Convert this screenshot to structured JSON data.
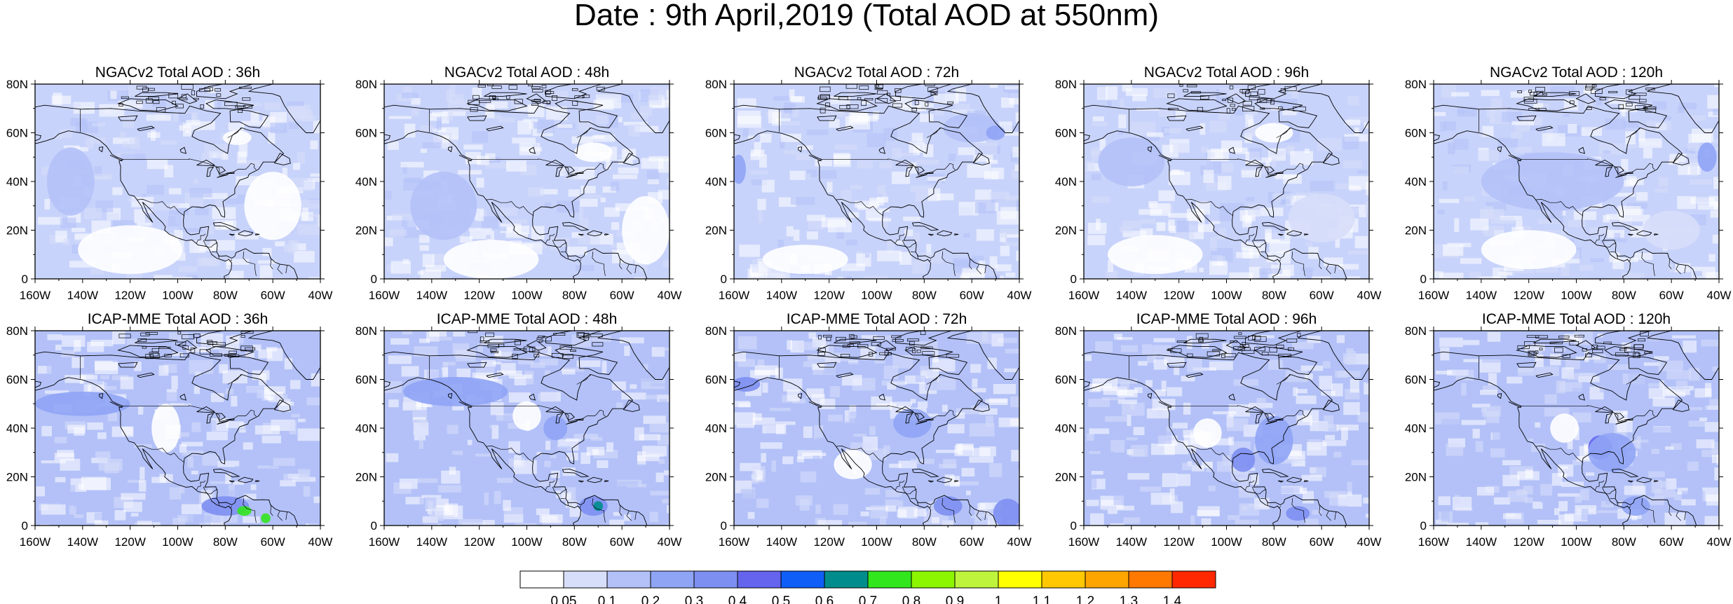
{
  "title": "Date : 9th April,2019 (Total AOD at 550nm)",
  "panels": [
    {
      "title": "NGACv2 Total AOD : 36h",
      "model": "NGACv2",
      "lead": "36h",
      "bg": "#c8d3fb",
      "blobs": [
        {
          "cx": -120,
          "cy": 12,
          "rx": 22,
          "ry": 10,
          "level": 0
        },
        {
          "cx": -60,
          "cy": 30,
          "rx": 12,
          "ry": 14,
          "level": 0
        },
        {
          "cx": -145,
          "cy": 40,
          "rx": 10,
          "ry": 14,
          "level": 2
        },
        {
          "cx": -75,
          "cy": 58,
          "rx": 6,
          "ry": 3,
          "level": 0
        }
      ]
    },
    {
      "title": "NGACv2 Total AOD : 48h",
      "model": "NGACv2",
      "lead": "48h",
      "bg": "#c8d3fb",
      "blobs": [
        {
          "cx": -115,
          "cy": 8,
          "rx": 20,
          "ry": 8,
          "level": 0
        },
        {
          "cx": -50,
          "cy": 20,
          "rx": 10,
          "ry": 14,
          "level": 0
        },
        {
          "cx": -135,
          "cy": 30,
          "rx": 14,
          "ry": 14,
          "level": 2
        },
        {
          "cx": -72,
          "cy": 52,
          "rx": 8,
          "ry": 4,
          "level": 0
        }
      ]
    },
    {
      "title": "NGACv2 Total AOD : 72h",
      "model": "NGACv2",
      "lead": "72h",
      "bg": "#c8d3fb",
      "blobs": [
        {
          "cx": -130,
          "cy": 8,
          "rx": 18,
          "ry": 6,
          "level": 0
        },
        {
          "cx": -60,
          "cy": 62,
          "rx": 12,
          "ry": 6,
          "level": 2
        },
        {
          "cx": -50,
          "cy": 60,
          "rx": 4,
          "ry": 3,
          "level": 3
        },
        {
          "cx": -158,
          "cy": 45,
          "rx": 3,
          "ry": 6,
          "level": 3
        }
      ]
    },
    {
      "title": "NGACv2 Total AOD : 96h",
      "model": "NGACv2",
      "lead": "96h",
      "bg": "#c8d3fb",
      "blobs": [
        {
          "cx": -130,
          "cy": 10,
          "rx": 20,
          "ry": 8,
          "level": 0
        },
        {
          "cx": -140,
          "cy": 48,
          "rx": 14,
          "ry": 10,
          "level": 2
        },
        {
          "cx": -60,
          "cy": 25,
          "rx": 14,
          "ry": 10,
          "level": 1
        },
        {
          "cx": -80,
          "cy": 60,
          "rx": 8,
          "ry": 4,
          "level": 0
        }
      ]
    },
    {
      "title": "NGACv2 Total AOD : 120h",
      "model": "NGACv2",
      "lead": "120h",
      "bg": "#c8d3fb",
      "blobs": [
        {
          "cx": -120,
          "cy": 12,
          "rx": 20,
          "ry": 8,
          "level": 0
        },
        {
          "cx": -110,
          "cy": 40,
          "rx": 30,
          "ry": 12,
          "level": 2
        },
        {
          "cx": -45,
          "cy": 50,
          "rx": 4,
          "ry": 6,
          "level": 3
        },
        {
          "cx": -60,
          "cy": 20,
          "rx": 12,
          "ry": 8,
          "level": 1
        }
      ]
    },
    {
      "title": "ICAP-MME Total AOD : 36h",
      "model": "ICAP-MME",
      "lead": "36h",
      "bg": "#b3c1f8",
      "blobs": [
        {
          "cx": -105,
          "cy": 40,
          "rx": 6,
          "ry": 10,
          "level": 0
        },
        {
          "cx": -140,
          "cy": 50,
          "rx": 20,
          "ry": 5,
          "level": 3
        },
        {
          "cx": -80,
          "cy": 8,
          "rx": 10,
          "ry": 4,
          "level": 4
        },
        {
          "cx": -72,
          "cy": 6,
          "rx": 3,
          "ry": 2,
          "level": 8
        },
        {
          "cx": -63,
          "cy": 3,
          "rx": 2,
          "ry": 2,
          "level": 8
        }
      ]
    },
    {
      "title": "ICAP-MME Total AOD : 48h",
      "model": "ICAP-MME",
      "lead": "48h",
      "bg": "#b3c1f8",
      "blobs": [
        {
          "cx": -100,
          "cy": 45,
          "rx": 6,
          "ry": 6,
          "level": 0
        },
        {
          "cx": -88,
          "cy": 40,
          "rx": 5,
          "ry": 5,
          "level": 3
        },
        {
          "cx": -130,
          "cy": 55,
          "rx": 22,
          "ry": 6,
          "level": 3
        },
        {
          "cx": -72,
          "cy": 8,
          "rx": 6,
          "ry": 4,
          "level": 4
        },
        {
          "cx": -70,
          "cy": 8,
          "rx": 2,
          "ry": 2,
          "level": 7
        }
      ]
    },
    {
      "title": "ICAP-MME Total AOD : 72h",
      "model": "ICAP-MME",
      "lead": "72h",
      "bg": "#b3c1f8",
      "blobs": [
        {
          "cx": -155,
          "cy": 58,
          "rx": 6,
          "ry": 3,
          "level": 4
        },
        {
          "cx": -85,
          "cy": 42,
          "rx": 8,
          "ry": 6,
          "level": 3
        },
        {
          "cx": -70,
          "cy": 8,
          "rx": 6,
          "ry": 4,
          "level": 4
        },
        {
          "cx": -45,
          "cy": 5,
          "rx": 6,
          "ry": 6,
          "level": 4
        },
        {
          "cx": -110,
          "cy": 25,
          "rx": 8,
          "ry": 6,
          "level": 0
        }
      ]
    },
    {
      "title": "ICAP-MME Total AOD : 96h",
      "model": "ICAP-MME",
      "lead": "96h",
      "bg": "#b3c1f8",
      "blobs": [
        {
          "cx": -93,
          "cy": 27,
          "rx": 5,
          "ry": 5,
          "level": 4
        },
        {
          "cx": -80,
          "cy": 35,
          "rx": 8,
          "ry": 10,
          "level": 3
        },
        {
          "cx": -108,
          "cy": 38,
          "rx": 6,
          "ry": 6,
          "level": 0
        },
        {
          "cx": -70,
          "cy": 5,
          "rx": 5,
          "ry": 3,
          "level": 4
        }
      ]
    },
    {
      "title": "ICAP-MME Total AOD : 120h",
      "model": "ICAP-MME",
      "lead": "120h",
      "bg": "#b3c1f8",
      "blobs": [
        {
          "cx": -90,
          "cy": 32,
          "rx": 5,
          "ry": 5,
          "level": 5
        },
        {
          "cx": -85,
          "cy": 30,
          "rx": 10,
          "ry": 8,
          "level": 3
        },
        {
          "cx": -75,
          "cy": 8,
          "rx": 6,
          "ry": 4,
          "level": 3
        },
        {
          "cx": -105,
          "cy": 40,
          "rx": 6,
          "ry": 6,
          "level": 0
        }
      ]
    }
  ],
  "axes": {
    "lon_range": [
      -160,
      -40
    ],
    "lat_range": [
      0,
      80
    ],
    "lon_ticks": [
      -160,
      -140,
      -120,
      -100,
      -80,
      -60,
      -40
    ],
    "lon_tick_labels": [
      "160W",
      "140W",
      "120W",
      "100W",
      "80W",
      "60W",
      "40W"
    ],
    "lat_ticks": [
      0,
      20,
      40,
      60,
      80
    ],
    "lat_tick_labels": [
      "0",
      "20N",
      "40N",
      "60N",
      "80N"
    ]
  },
  "colorbar": {
    "colors": [
      "#ffffff",
      "#d7def9",
      "#b3c1f8",
      "#8fa4f5",
      "#7d8ff1",
      "#6464ee",
      "#0f5ef7",
      "#008c8c",
      "#32e61e",
      "#8cf500",
      "#bef53c",
      "#ffff00",
      "#ffc800",
      "#ffa500",
      "#ff7800",
      "#ff2800"
    ],
    "labels": [
      "0.05",
      "0.1",
      "0.2",
      "0.3",
      "0.4",
      "0.5",
      "0.6",
      "0.7",
      "0.8",
      "0.9",
      "1",
      "1.1",
      "1.2",
      "1.3",
      "1.4"
    ]
  },
  "map_colors": {
    "coastline": "#000000",
    "border": "#000000"
  }
}
